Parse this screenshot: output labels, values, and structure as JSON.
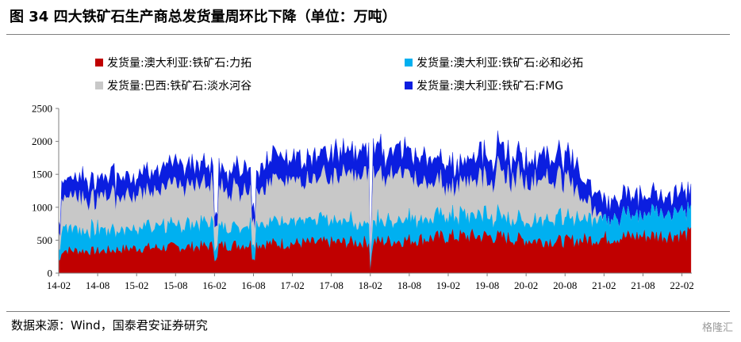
{
  "figure": {
    "title": "图 34  四大铁矿石生产商总发货量周环比下降（单位：万吨）",
    "source": "数据来源：Wind，国泰君安证券研究",
    "watermark": "格隆汇"
  },
  "chart_data": {
    "type": "area",
    "stacked": true,
    "title": "图 34  四大铁矿石生产商总发货量周环比下降（单位：万吨）",
    "unit": "万吨",
    "xlabel": "",
    "ylabel": "",
    "ylim": [
      0,
      2500
    ],
    "yticks": [
      0,
      500,
      1000,
      1500,
      2000,
      2500
    ],
    "xticks": [
      "14-02",
      "14-08",
      "15-02",
      "15-08",
      "16-02",
      "16-08",
      "17-02",
      "17-08",
      "18-02",
      "18-08",
      "19-02",
      "19-08",
      "20-02",
      "20-08",
      "21-02",
      "21-08",
      "22-02"
    ],
    "grid": false,
    "legend_position": "top",
    "series": [
      {
        "name": "发货量:澳大利亚:铁矿石:力拓",
        "color": "#c00000",
        "values": [
          350,
          330,
          380,
          390,
          410,
          440,
          450,
          460,
          470,
          500,
          550,
          560,
          500,
          480,
          530,
          560,
          580
        ]
      },
      {
        "name": "发货量:澳大利亚:铁矿石:必和必拓",
        "color": "#00b0f0",
        "values": [
          330,
          330,
          320,
          330,
          330,
          330,
          330,
          330,
          320,
          320,
          310,
          320,
          310,
          350,
          330,
          320,
          380
        ]
      },
      {
        "name": "发货量:巴西:铁矿石:淡水河谷",
        "color": "#c8c8c8",
        "values": [
          450,
          480,
          520,
          600,
          560,
          590,
          600,
          650,
          750,
          650,
          450,
          600,
          650,
          600,
          0,
          0,
          0
        ]
      },
      {
        "name": "发货量:澳大利亚:铁矿石:FMG",
        "color": "#0b1ee0",
        "values": [
          300,
          300,
          310,
          330,
          330,
          340,
          350,
          360,
          400,
          370,
          340,
          340,
          360,
          350,
          300,
          300,
          300
        ]
      }
    ]
  }
}
